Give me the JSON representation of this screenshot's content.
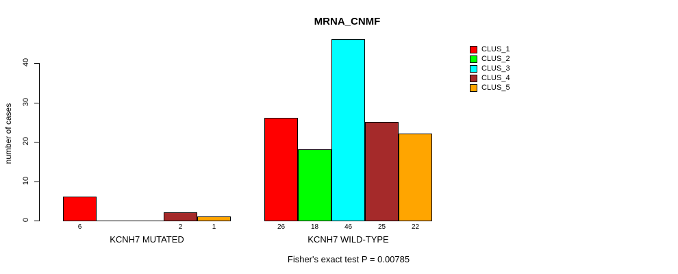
{
  "chart_data": {
    "type": "bar",
    "title": "MRNA_CNMF",
    "subtitle": "Fisher's exact test P = 0.00785",
    "ylabel": "number of cases",
    "xlabel": "",
    "categories": [
      "KCNH7 MUTATED",
      "KCNH7 WILD-TYPE"
    ],
    "series": [
      {
        "name": "CLUS_1",
        "color": "#ff0000",
        "values": [
          6,
          26
        ]
      },
      {
        "name": "CLUS_2",
        "color": "#00ff00",
        "values": [
          0,
          18
        ]
      },
      {
        "name": "CLUS_3",
        "color": "#00ffff",
        "values": [
          0,
          46
        ]
      },
      {
        "name": "CLUS_4",
        "color": "#a52a2a",
        "values": [
          2,
          25
        ]
      },
      {
        "name": "CLUS_5",
        "color": "#ffa500",
        "values": [
          1,
          22
        ]
      }
    ],
    "bar_value_labels": {
      "KCNH7 MUTATED": [
        6,
        0,
        0,
        2,
        1
      ],
      "KCNH7 WILD-TYPE": [
        26,
        18,
        46,
        25,
        22
      ]
    },
    "ylim": [
      0,
      46
    ],
    "yticks": [
      0,
      10,
      20,
      30,
      40
    ],
    "grid": false,
    "legend_position": "top-right",
    "axis_color": "#000000",
    "bar_border_color": "#000000"
  }
}
